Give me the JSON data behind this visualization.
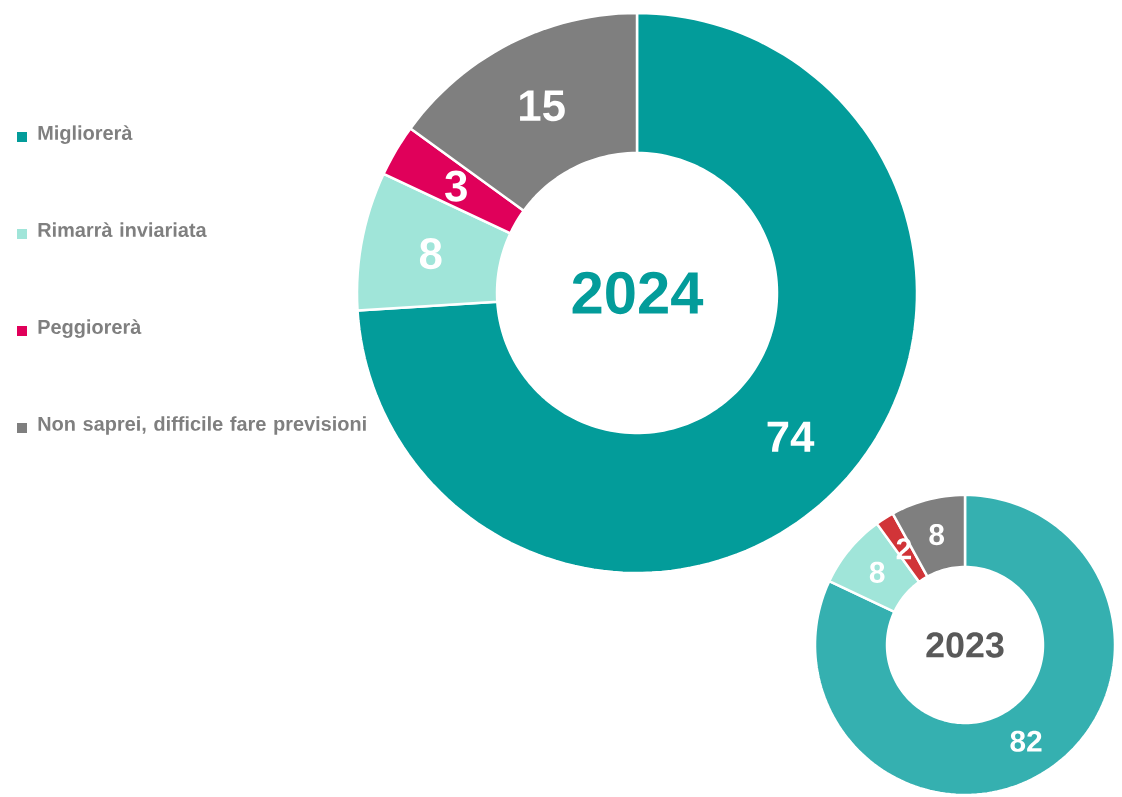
{
  "chart_data": [
    {
      "type": "donut",
      "title": "2024",
      "categories": [
        "Migliorerà",
        "Rimarrà inviariata",
        "Peggiorerà",
        "Non saprei, difficile fare previsioni"
      ],
      "values": [
        74,
        8,
        3,
        15
      ],
      "colors": [
        "#039c9a",
        "#a0e5d9",
        "#e0005a",
        "#7f7f7f"
      ],
      "data_labels": true,
      "legend": "left"
    },
    {
      "type": "donut",
      "title": "2023",
      "categories": [
        null,
        null,
        null,
        null
      ],
      "values": [
        82,
        8,
        2,
        8
      ],
      "colors": [
        "#35b0b0",
        "#a0e5d9",
        "#d13438",
        "#7f7f7f"
      ],
      "data_labels": true
    }
  ]
}
